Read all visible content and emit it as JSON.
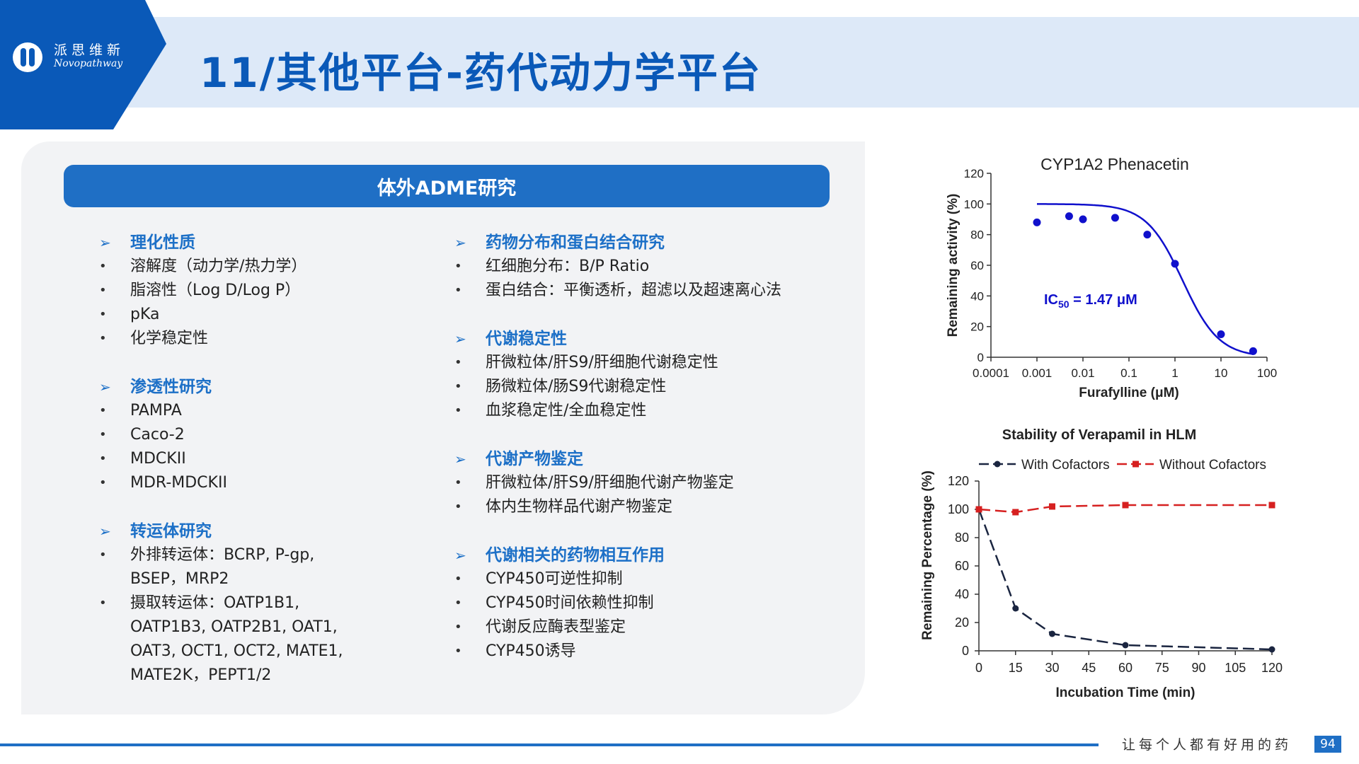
{
  "logo": {
    "cn": "派思维新",
    "en": "Novopathway"
  },
  "title": "11/其他平台-药代动力学平台",
  "panel": {
    "header": "体外ADME研究",
    "left_sections": [
      {
        "title": "理化性质",
        "items": [
          "溶解度（动力学/热力学）",
          "脂溶性（Log D/Log P）",
          "pKa",
          "化学稳定性"
        ]
      },
      {
        "title": "渗透性研究",
        "items": [
          "PAMPA",
          "Caco-2",
          "MDCKII",
          "MDR-MDCKII"
        ]
      },
      {
        "title": "转运体研究",
        "items": [
          "外排转运体：BCRP, P-gp,",
          "BSEP，MRP2",
          "摄取转运体：OATP1B1,",
          "OATP1B3, OATP2B1, OAT1,",
          "OAT3, OCT1, OCT2, MATE1,",
          "MATE2K，PEPT1/2"
        ]
      }
    ],
    "right_sections": [
      {
        "title": "药物分布和蛋白结合研究",
        "items": [
          "红细胞分布：B/P Ratio",
          "蛋白结合：平衡透析，超滤以及超速离心法"
        ]
      },
      {
        "title": "代谢稳定性",
        "items": [
          "肝微粒体/肝S9/肝细胞代谢稳定性",
          "肠微粒体/肠S9代谢稳定性",
          "血浆稳定性/全血稳定性"
        ]
      },
      {
        "title": "代谢产物鉴定",
        "items": [
          "肝微粒体/肝S9/肝细胞代谢产物鉴定",
          "体内生物样品代谢产物鉴定"
        ]
      },
      {
        "title": "代谢相关的药物相互作用",
        "items": [
          "CYP450可逆性抑制",
          "CYP450时间依赖性抑制",
          "代谢反应酶表型鉴定",
          "CYP450诱导"
        ]
      }
    ]
  },
  "chart_data": [
    {
      "type": "scatter",
      "title": "CYP1A2 Phenacetin",
      "xlabel": "Furafylline (μM)",
      "ylabel": "Remaining activity (%)",
      "x_scale": "log",
      "xlim": [
        0.0001,
        100
      ],
      "ylim": [
        0,
        120
      ],
      "x_ticks": [
        "0.0001",
        "0.001",
        "0.01",
        "0.1",
        "1",
        "10",
        "100"
      ],
      "y_ticks": [
        "0",
        "20",
        "40",
        "60",
        "80",
        "100",
        "120"
      ],
      "annotation": {
        "prefix": "IC",
        "sub": "50",
        "suffix": " = 1.47 μM"
      },
      "points": {
        "x": [
          0.001,
          0.005,
          0.01,
          0.05,
          0.25,
          1,
          10,
          50
        ],
        "y": [
          88,
          92,
          90,
          91,
          80,
          61,
          15,
          4
        ]
      },
      "fit": {
        "top": 100,
        "bottom": 0,
        "ic50": 1.47,
        "hill": 1.1
      },
      "colors": {
        "series": "#1010cc",
        "axis": "#333333"
      }
    },
    {
      "type": "line",
      "title": "Stability of Verapamil in HLM",
      "xlabel": "Incubation Time (min)",
      "ylabel": "Remaining Percentage (%)",
      "xlim": [
        0,
        120
      ],
      "ylim": [
        0,
        120
      ],
      "x_ticks": [
        "0",
        "15",
        "30",
        "45",
        "60",
        "75",
        "90",
        "105",
        "120"
      ],
      "y_ticks": [
        "0",
        "20",
        "40",
        "60",
        "80",
        "100",
        "120"
      ],
      "legend_position": "top",
      "series": [
        {
          "name": "With Cofactors",
          "x": [
            0,
            15,
            30,
            60,
            120
          ],
          "y": [
            100,
            30,
            12,
            4,
            1
          ],
          "color": "#1a2540",
          "marker": "circle"
        },
        {
          "name": "Without Cofactors",
          "x": [
            0,
            15,
            30,
            60,
            120
          ],
          "y": [
            100,
            98,
            102,
            103,
            103
          ],
          "color": "#d62020",
          "marker": "square"
        }
      ]
    }
  ],
  "footer": {
    "slogan": "让每个人都有好用的药",
    "page": "94"
  }
}
